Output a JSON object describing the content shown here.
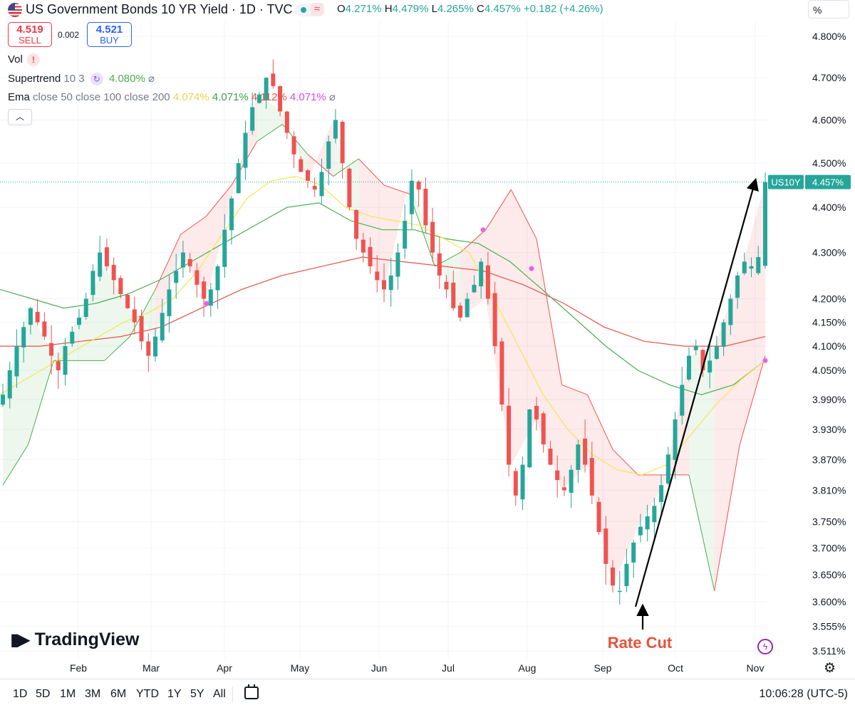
{
  "header": {
    "title": "US Government Bonds 10 YR Yield · 1D · TVC",
    "flag_icon": "us-flag-icon",
    "ohlc": {
      "o_label": "O",
      "o": "4.271%",
      "h_label": "H",
      "h": "4.479%",
      "l_label": "L",
      "l": "4.265%",
      "c_label": "C",
      "c": "4.457%",
      "change": "+0.182 (+4.26%)"
    },
    "scale_mode": "%"
  },
  "trade": {
    "sell_price": "4.519",
    "sell_label": "SELL",
    "spread": "0.002",
    "buy_price": "4.521",
    "buy_label": "BUY"
  },
  "indicators": {
    "vol_label": "Vol",
    "supertrend_label": "Supertrend",
    "supertrend_params": "10 3",
    "supertrend_value": "4.080%",
    "ema_label": "Ema",
    "ema_params": "close 50 close 100 close 200",
    "ema50_value": "4.074%",
    "ema100_value": "4.071%",
    "ema200_value": "4.112%",
    "ema_extra_value": "4.071%"
  },
  "colors": {
    "up": "#26a69a",
    "down": "#ef5350",
    "ema50": "#f5e74f",
    "ema100": "#4caf50",
    "ema200": "#e5534b",
    "supertrend_up": "#4caf50",
    "supertrend_down": "#ef5350",
    "annotation": "#e5533d"
  },
  "annotation": {
    "label": "Rate Cut"
  },
  "branding": {
    "logo_text": "TradingView"
  },
  "timeframes": [
    "1D",
    "5D",
    "1M",
    "3M",
    "6M",
    "YTD",
    "1Y",
    "5Y",
    "All"
  ],
  "clock": "10:06:28 (UTC-5)",
  "chart_data": {
    "type": "candlestick",
    "symbol_tag": "US10Y",
    "last_value": "4.457%",
    "y_ticks": [
      "4.800%",
      "4.700%",
      "4.600%",
      "4.500%",
      "4.400%",
      "4.300%",
      "4.200%",
      "4.150%",
      "4.100%",
      "4.050%",
      "3.990%",
      "3.930%",
      "3.870%",
      "3.810%",
      "3.750%",
      "3.700%",
      "3.650%",
      "3.600%",
      "3.555%",
      "3.511%"
    ],
    "x_ticks": [
      "Feb",
      "Mar",
      "Apr",
      "May",
      "Jun",
      "Jul",
      "Aug",
      "Sep",
      "Oct",
      "Nov"
    ],
    "ylim": [
      3.5,
      4.82
    ],
    "y_scale": "log",
    "grid": true,
    "close_series": [
      4.0,
      4.05,
      4.1,
      4.14,
      4.18,
      4.15,
      4.12,
      4.08,
      4.05,
      4.1,
      4.13,
      4.16,
      4.2,
      4.26,
      4.3,
      4.27,
      4.24,
      4.21,
      4.18,
      4.15,
      4.11,
      4.08,
      4.12,
      4.17,
      4.22,
      4.26,
      4.3,
      4.27,
      4.23,
      4.2,
      4.22,
      4.27,
      4.35,
      4.42,
      4.5,
      4.57,
      4.63,
      4.66,
      4.7,
      4.68,
      4.62,
      4.57,
      4.52,
      4.48,
      4.46,
      4.44,
      4.48,
      4.55,
      4.6,
      4.5,
      4.4,
      4.33,
      4.3,
      4.27,
      4.24,
      4.22,
      4.25,
      4.3,
      4.37,
      4.46,
      4.44,
      4.36,
      4.3,
      4.25,
      4.22,
      4.18,
      4.16,
      4.2,
      4.23,
      4.28,
      4.2,
      4.1,
      3.98,
      3.86,
      3.8,
      3.86,
      3.97,
      3.95,
      3.9,
      3.86,
      3.83,
      3.81,
      3.85,
      3.9,
      3.86,
      3.8,
      3.73,
      3.67,
      3.63,
      3.62,
      3.67,
      3.71,
      3.74,
      3.76,
      3.78,
      3.82,
      3.88,
      3.95,
      4.02,
      4.08,
      4.1,
      4.05,
      4.07,
      4.1,
      4.15,
      4.2,
      4.25,
      4.28,
      4.27,
      4.29,
      4.457
    ],
    "ema50": [
      4.0,
      4.03,
      4.06,
      4.09,
      4.12,
      4.15,
      4.17,
      4.2,
      4.26,
      4.34,
      4.42,
      4.46,
      4.47,
      4.45,
      4.4,
      4.38,
      4.37,
      4.36,
      4.33,
      4.3,
      4.2,
      4.1,
      4.0,
      3.93,
      3.88,
      3.85,
      3.84,
      3.86,
      3.92,
      3.98,
      4.03,
      4.07
    ],
    "ema100": [
      4.22,
      4.2,
      4.18,
      4.19,
      4.21,
      4.24,
      4.28,
      4.32,
      4.36,
      4.4,
      4.41,
      4.37,
      4.35,
      4.35,
      4.33,
      4.32,
      4.28,
      4.22,
      4.16,
      4.1,
      4.05,
      4.02,
      4.0,
      4.02,
      4.07
    ],
    "ema200": [
      4.1,
      4.1,
      4.11,
      4.12,
      4.14,
      4.18,
      4.22,
      4.25,
      4.27,
      4.29,
      4.28,
      4.27,
      4.26,
      4.23,
      4.19,
      4.14,
      4.11,
      4.1,
      4.1,
      4.12
    ],
    "supertrend": [
      3.82,
      3.9,
      4.07,
      4.07,
      4.07,
      4.12,
      4.22,
      4.34,
      4.38,
      4.45,
      4.55,
      4.59,
      4.52,
      4.47,
      4.51,
      4.45,
      4.43,
      4.27,
      4.3,
      4.35,
      4.44,
      4.33,
      4.02,
      4.0,
      3.89,
      3.84,
      3.84,
      3.84,
      3.62,
      3.9,
      4.08
    ]
  }
}
